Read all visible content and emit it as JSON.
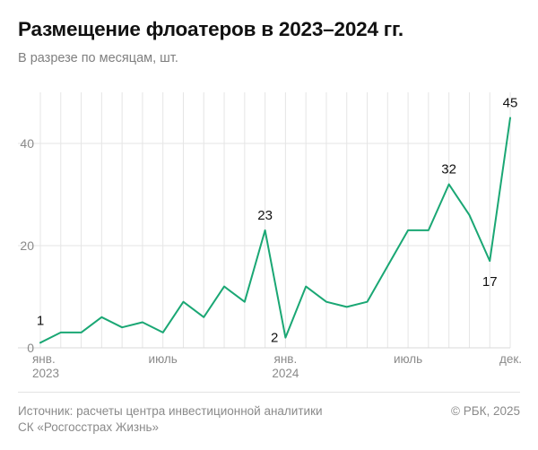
{
  "title": "Размещение флоатеров в 2023–2024 гг.",
  "subtitle": "В разрезе по месяцам, шт.",
  "footer": {
    "source_line1": "Источник: расчеты центра инвестиционной аналитики",
    "source_line2": "СК «Росгосстрах Жизнь»",
    "copyright": "© РБК, 2025"
  },
  "colors": {
    "line": "#1aa774",
    "grid": "#e5e5e5",
    "axis_text": "#8a8a8a",
    "label_text": "#111111"
  },
  "chart_data": {
    "type": "line",
    "title": "Размещение флоатеров в 2023–2024 гг.",
    "subtitle": "В разрезе по месяцам, шт.",
    "x": [
      "2023-01",
      "2023-02",
      "2023-03",
      "2023-04",
      "2023-05",
      "2023-06",
      "2023-07",
      "2023-08",
      "2023-09",
      "2023-10",
      "2023-11",
      "2023-12",
      "2024-01",
      "2024-02",
      "2024-03",
      "2024-04",
      "2024-05",
      "2024-06",
      "2024-07",
      "2024-08",
      "2024-09",
      "2024-10",
      "2024-11",
      "2024-12"
    ],
    "series": [
      {
        "values": [
          1,
          3,
          3,
          6,
          4,
          5,
          3,
          9,
          6,
          12,
          9,
          23,
          2,
          12,
          9,
          8,
          9,
          16,
          23,
          23,
          32,
          26,
          17,
          45
        ]
      }
    ],
    "ylim": [
      0,
      50
    ],
    "yticks": [
      0,
      20,
      40
    ],
    "xtick_labels": [
      {
        "index": 0,
        "line1": "янв.",
        "line2": "2023"
      },
      {
        "index": 6,
        "line1": "июль",
        "line2": ""
      },
      {
        "index": 12,
        "line1": "янв.",
        "line2": "2024"
      },
      {
        "index": 18,
        "line1": "июль",
        "line2": ""
      },
      {
        "index": 23,
        "line1": "дек.",
        "line2": ""
      }
    ],
    "data_labels": [
      {
        "index": 0,
        "text": "1",
        "position": "above"
      },
      {
        "index": 11,
        "text": "23",
        "position": "above"
      },
      {
        "index": 12,
        "text": "2",
        "position": "left"
      },
      {
        "index": 20,
        "text": "32",
        "position": "above"
      },
      {
        "index": 22,
        "text": "17",
        "position": "below"
      },
      {
        "index": 23,
        "text": "45",
        "position": "above"
      }
    ],
    "grid": {
      "vertical": true,
      "horizontal": true
    }
  }
}
